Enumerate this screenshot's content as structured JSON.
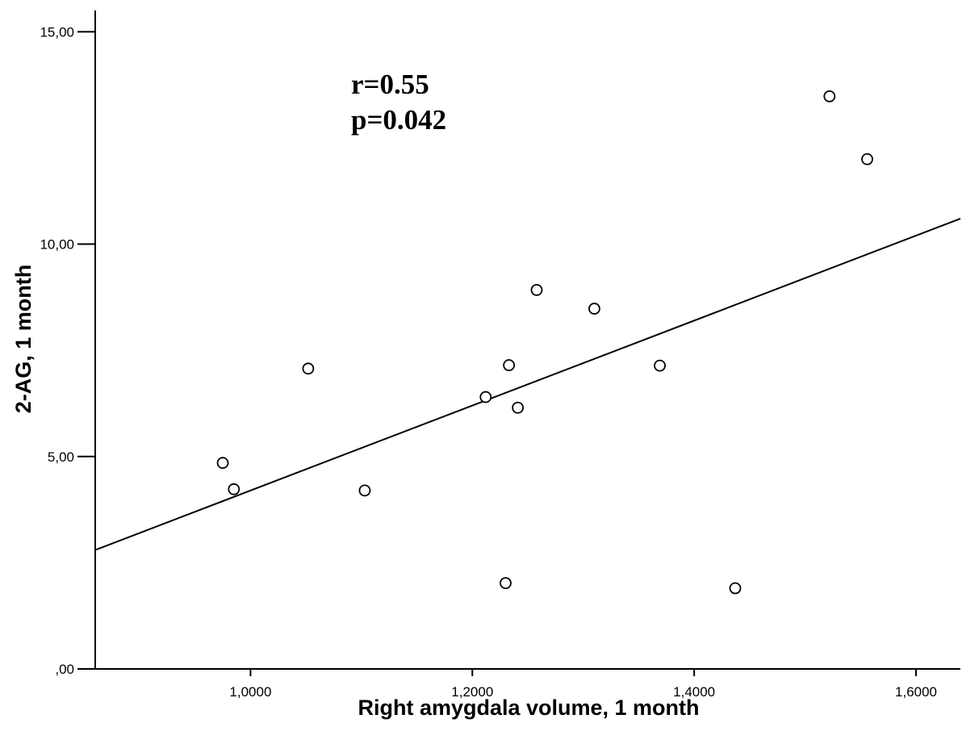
{
  "chart_data": {
    "type": "scatter",
    "xlabel": "Right amygdala volume, 1 month",
    "ylabel": "2-AG, 1 month",
    "xlim": [
      0.86,
      1.64
    ],
    "ylim": [
      0,
      15.5
    ],
    "x_ticks": [
      1.0,
      1.2,
      1.4,
      1.6
    ],
    "x_tick_labels": [
      "1,0000",
      "1,2000",
      "1,4000",
      "1,6000"
    ],
    "y_ticks": [
      0,
      5,
      10,
      15
    ],
    "y_tick_labels": [
      ",00",
      "5,00",
      "10,00",
      "15,00"
    ],
    "annotations": [
      "r=0.55",
      "p=0.042"
    ],
    "grid": false,
    "fit_line": {
      "x": [
        0.86,
        1.64
      ],
      "y": [
        2.8,
        10.6
      ]
    },
    "points": [
      {
        "x": 0.975,
        "y": 4.85
      },
      {
        "x": 0.985,
        "y": 4.23
      },
      {
        "x": 1.052,
        "y": 7.07
      },
      {
        "x": 1.103,
        "y": 4.2
      },
      {
        "x": 1.212,
        "y": 6.4
      },
      {
        "x": 1.23,
        "y": 2.02
      },
      {
        "x": 1.233,
        "y": 7.15
      },
      {
        "x": 1.241,
        "y": 6.15
      },
      {
        "x": 1.258,
        "y": 8.92
      },
      {
        "x": 1.31,
        "y": 8.48
      },
      {
        "x": 1.369,
        "y": 7.14
      },
      {
        "x": 1.437,
        "y": 1.9
      },
      {
        "x": 1.522,
        "y": 13.48
      },
      {
        "x": 1.556,
        "y": 12.0
      }
    ]
  }
}
